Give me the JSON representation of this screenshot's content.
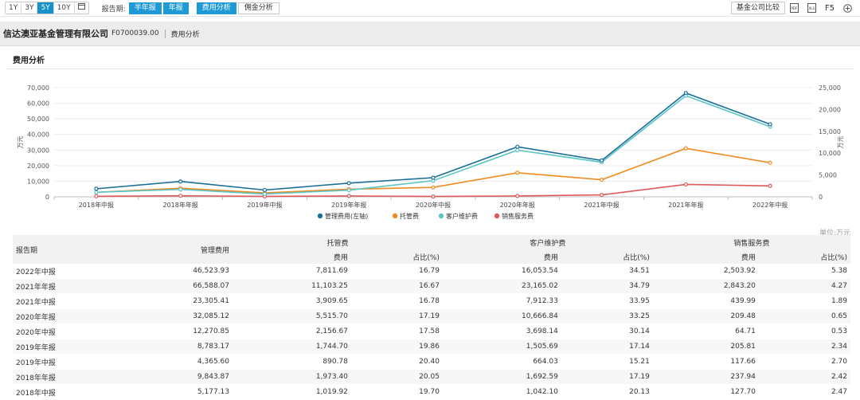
{
  "toolbar": {
    "ranges": [
      "1Y",
      "3Y",
      "5Y",
      "10Y"
    ],
    "active_range": "5Y",
    "calendar_icon": "calendar-icon",
    "period_label": "报告期:",
    "half_year_btn": "半年报",
    "annual_btn": "年报",
    "expense_tab": "费用分析",
    "commission_tab": "佣金分析",
    "compare_btn": "基金公司比较",
    "f5_label": "F5",
    "icons": [
      "pdf-export-icon",
      "excel-export-icon",
      "add-icon"
    ]
  },
  "header": {
    "company_name": "信达澳亚基金管理有限公司",
    "company_code": "F0700039.00",
    "section": "费用分析"
  },
  "section_title": "费用分析",
  "chart_data": {
    "type": "line",
    "categories": [
      "2018年中报",
      "2018年年报",
      "2019年中报",
      "2019年年报",
      "2020年中报",
      "2020年年报",
      "2021年中报",
      "2021年年报",
      "2022年中报"
    ],
    "left_axis": {
      "label": "万元",
      "ticks": [
        "0",
        "10,000",
        "20,000",
        "30,000",
        "40,000",
        "50,000",
        "60,000",
        "70,000"
      ],
      "ylim": [
        0,
        70000
      ]
    },
    "right_axis": {
      "label": "万元",
      "ticks": [
        "0",
        "5,000",
        "10,000",
        "15,000",
        "20,000",
        "25,000"
      ],
      "ylim": [
        0,
        25000
      ]
    },
    "series": [
      {
        "name": "管理费用(左轴)",
        "axis": "left",
        "color": "#1a6e9a",
        "values": [
          5177.13,
          9843.87,
          4365.6,
          8783.17,
          12270.85,
          32085.12,
          23305.41,
          66588.07,
          46523.93
        ]
      },
      {
        "name": "托管费",
        "axis": "right",
        "color": "#f28a1e",
        "values": [
          1019.92,
          1973.4,
          890.78,
          1744.7,
          2156.67,
          5515.7,
          3909.65,
          11103.25,
          7811.69
        ]
      },
      {
        "name": "客户维护费",
        "axis": "right",
        "color": "#5cc5c8",
        "values": [
          1042.1,
          1692.59,
          664.03,
          1505.69,
          3698.14,
          10666.84,
          7912.33,
          23165.02,
          16053.54
        ]
      },
      {
        "name": "销售服务费",
        "axis": "right",
        "color": "#e05a5a",
        "values": [
          127.7,
          237.94,
          117.66,
          205.81,
          64.71,
          209.48,
          439.99,
          2843.2,
          2503.92
        ]
      }
    ],
    "legend_position": "bottom",
    "grid": true
  },
  "table": {
    "unit": "单位:万元",
    "headers": {
      "period": "报告期",
      "mgmt": "管理费用",
      "custody": "托管费",
      "client": "客户维护费",
      "sales": "销售服务费",
      "fee": "费用",
      "ratio": "占比(%)"
    },
    "rows": [
      [
        "2022年中报",
        "46,523.93",
        "7,811.69",
        "16.79",
        "16,053.54",
        "34.51",
        "2,503.92",
        "5.38"
      ],
      [
        "2021年年报",
        "66,588.07",
        "11,103.25",
        "16.67",
        "23,165.02",
        "34.79",
        "2,843.20",
        "4.27"
      ],
      [
        "2021年中报",
        "23,305.41",
        "3,909.65",
        "16.78",
        "7,912.33",
        "33.95",
        "439.99",
        "1.89"
      ],
      [
        "2020年年报",
        "32,085.12",
        "5,515.70",
        "17.19",
        "10,666.84",
        "33.25",
        "209.48",
        "0.65"
      ],
      [
        "2020年中报",
        "12,270.85",
        "2,156.67",
        "17.58",
        "3,698.14",
        "30.14",
        "64.71",
        "0.53"
      ],
      [
        "2019年年报",
        "8,783.17",
        "1,744.70",
        "19.86",
        "1,505.69",
        "17.14",
        "205.81",
        "2.34"
      ],
      [
        "2019年中报",
        "4,365.60",
        "890.78",
        "20.40",
        "664.03",
        "15.21",
        "117.66",
        "2.70"
      ],
      [
        "2018年年报",
        "9,843.87",
        "1,973.40",
        "20.05",
        "1,692.59",
        "17.19",
        "237.94",
        "2.42"
      ],
      [
        "2018年中报",
        "5,177.13",
        "1,019.92",
        "19.70",
        "1,042.10",
        "20.13",
        "127.70",
        "2.47"
      ]
    ]
  }
}
